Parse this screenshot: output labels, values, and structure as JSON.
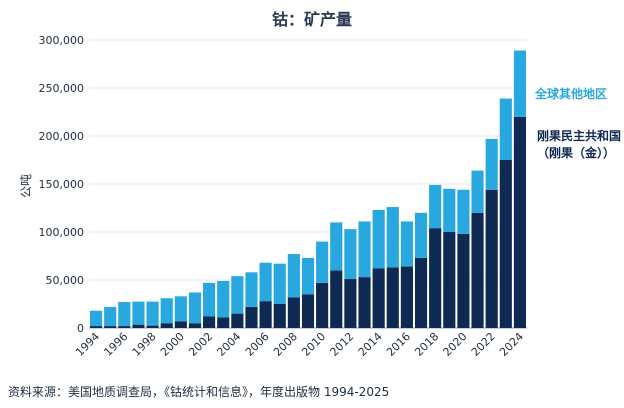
{
  "chart_data": {
    "type": "bar",
    "stacked": true,
    "title": "钴：矿产量",
    "ylabel": "公吨",
    "ylim": [
      0,
      300000
    ],
    "yticks": [
      "0",
      "50,000",
      "100,000",
      "150,000",
      "200,000",
      "250,000",
      "300,000"
    ],
    "grid": true,
    "legend_placement": "right",
    "categories": [
      "1994",
      "1995",
      "1996",
      "1997",
      "1998",
      "1999",
      "2000",
      "2001",
      "2002",
      "2003",
      "2004",
      "2005",
      "2006",
      "2007",
      "2008",
      "2009",
      "2010",
      "2011",
      "2012",
      "2013",
      "2014",
      "2015",
      "2016",
      "2017",
      "2018",
      "2019",
      "2020",
      "2021",
      "2022",
      "2023",
      "2024"
    ],
    "xtick_labels": [
      "1994",
      "1996",
      "1998",
      "2000",
      "2002",
      "2004",
      "2006",
      "2008",
      "2010",
      "2012",
      "2014",
      "2016",
      "2018",
      "2020",
      "2022",
      "2024"
    ],
    "series": [
      {
        "name": "刚果民主共和国（刚果（金））",
        "color": "#0f2a52",
        "values": [
          2000,
          2000,
          2000,
          3500,
          2500,
          5000,
          7000,
          5000,
          12000,
          11000,
          15000,
          22000,
          28000,
          25000,
          32000,
          35000,
          47000,
          60000,
          51000,
          53000,
          62000,
          63000,
          64000,
          73000,
          104000,
          100000,
          98000,
          120000,
          144000,
          175000,
          220000
        ]
      },
      {
        "name": "全球其他地区",
        "color": "#29a8e0",
        "values": [
          16000,
          20000,
          25000,
          24000,
          25000,
          26000,
          26000,
          32000,
          35000,
          38000,
          39000,
          36000,
          40000,
          42000,
          45000,
          38000,
          43000,
          50000,
          52000,
          58000,
          61000,
          63000,
          47000,
          47000,
          45000,
          45000,
          46000,
          44000,
          53000,
          64000,
          69000
        ]
      }
    ]
  },
  "legend": {
    "rest_of_world": "全球其他地区",
    "drc_line1": "刚果民主共和国",
    "drc_line2": "（刚果（金））"
  },
  "source": "资料来源：美国地质调查局，《钴统计和信息》，年度出版物 1994-2025"
}
